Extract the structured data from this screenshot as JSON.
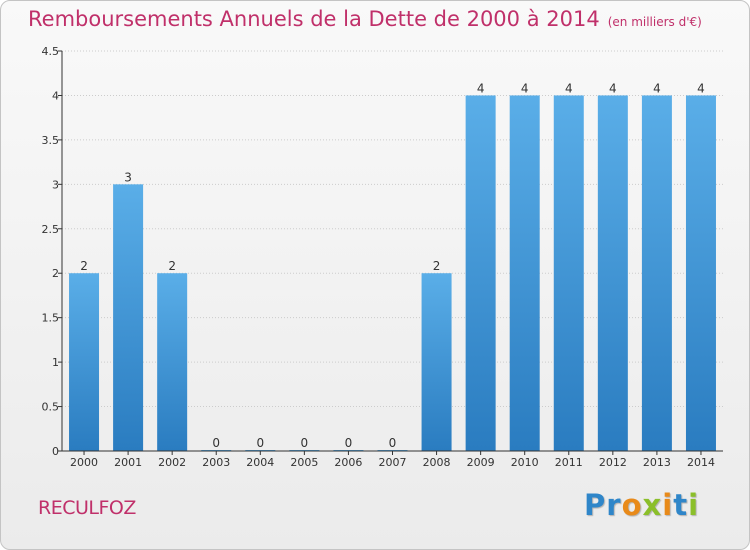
{
  "header": {
    "title": "Remboursements Annuels de la Dette de 2000 à 2014",
    "unit": "(en milliers d'€)"
  },
  "footer": {
    "place": "RECULFOZ",
    "logo": "Proxiti"
  },
  "colors": {
    "bar_top": "#5aaee8",
    "bar_bottom": "#2a7cc0",
    "title": "#c0306a",
    "axis": "#333333",
    "grid": "#cccccc"
  },
  "chart_data": {
    "type": "bar",
    "title": "Remboursements Annuels de la Dette de 2000 à 2014",
    "xlabel": "",
    "ylabel": "",
    "categories": [
      "2000",
      "2001",
      "2002",
      "2003",
      "2004",
      "2005",
      "2006",
      "2007",
      "2008",
      "2009",
      "2010",
      "2011",
      "2012",
      "2013",
      "2014"
    ],
    "values": [
      2,
      3,
      2,
      0,
      0,
      0,
      0,
      0,
      2,
      4,
      4,
      4,
      4,
      4,
      4
    ],
    "data_labels": [
      "2",
      "3",
      "2",
      "0",
      "0",
      "0",
      "0",
      "0",
      "2",
      "4",
      "4",
      "4",
      "4",
      "4",
      "4"
    ],
    "yticks": [
      0,
      0.5,
      1,
      1.5,
      2,
      2.5,
      3,
      3.5,
      4,
      4.5
    ],
    "ytick_labels": [
      "0",
      "0.5",
      "1",
      "1.5",
      "2",
      "2.5",
      "3",
      "3.5",
      "4",
      "4.5"
    ],
    "ylim": [
      0,
      4.5
    ],
    "grid": true,
    "legend": "none"
  }
}
